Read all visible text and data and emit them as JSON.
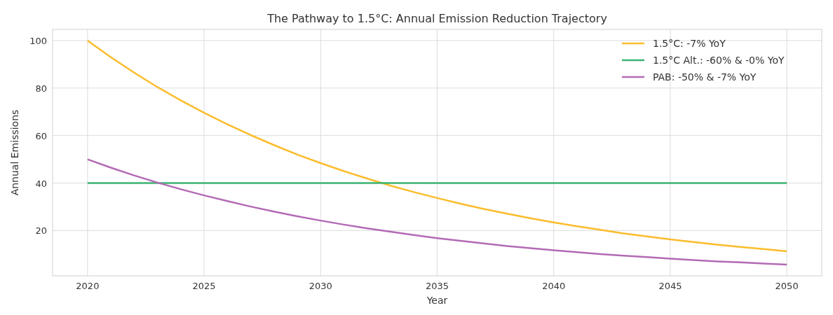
{
  "chart_data": {
    "type": "line",
    "title": "The Pathway to 1.5°C: Annual Emission Reduction Trajectory",
    "xlabel": "Year",
    "ylabel": "Annual Emissions",
    "x": [
      2020,
      2021,
      2022,
      2023,
      2024,
      2025,
      2026,
      2027,
      2028,
      2029,
      2030,
      2031,
      2032,
      2033,
      2034,
      2035,
      2036,
      2037,
      2038,
      2039,
      2040,
      2041,
      2042,
      2043,
      2044,
      2045,
      2046,
      2047,
      2048,
      2049,
      2050
    ],
    "series": [
      {
        "name": "1.5°C: -7% YoY",
        "color": "#fbbc2c",
        "values": [
          100,
          93,
          86.5,
          80.4,
          74.8,
          69.6,
          64.7,
          60.2,
          56,
          52,
          48.4,
          45,
          41.9,
          38.9,
          36.2,
          33.7,
          31.3,
          29.1,
          27.1,
          25.2,
          23.4,
          21.8,
          20.3,
          18.8,
          17.5,
          16.3,
          15.2,
          14.1,
          13.1,
          12.2,
          11.3
        ]
      },
      {
        "name": "1.5°C Alt.: -60% & -0% YoY",
        "color": "#3cb371",
        "x": [
          2020,
          2050
        ],
        "values": [
          40,
          40
        ]
      },
      {
        "name": "PAB: -50% & -7% YoY",
        "color": "#b36ab5",
        "values": [
          50,
          46.5,
          43.2,
          40.2,
          37.4,
          34.8,
          32.4,
          30.1,
          28,
          26,
          24.2,
          22.5,
          20.9,
          19.5,
          18.1,
          16.8,
          15.7,
          14.6,
          13.5,
          12.6,
          11.7,
          10.9,
          10.1,
          9.4,
          8.8,
          8.2,
          7.6,
          7,
          6.6,
          6.1,
          5.7
        ]
      }
    ],
    "xlim": [
      2018.5,
      2051.5
    ],
    "xticks": [
      2020,
      2025,
      2030,
      2035,
      2040,
      2045,
      2050
    ],
    "ylim": [
      0.95,
      104.7
    ],
    "yticks": [
      20,
      40,
      60,
      80,
      100
    ],
    "grid": true,
    "legend": "top right",
    "line_style": "solid",
    "marker": "none"
  }
}
